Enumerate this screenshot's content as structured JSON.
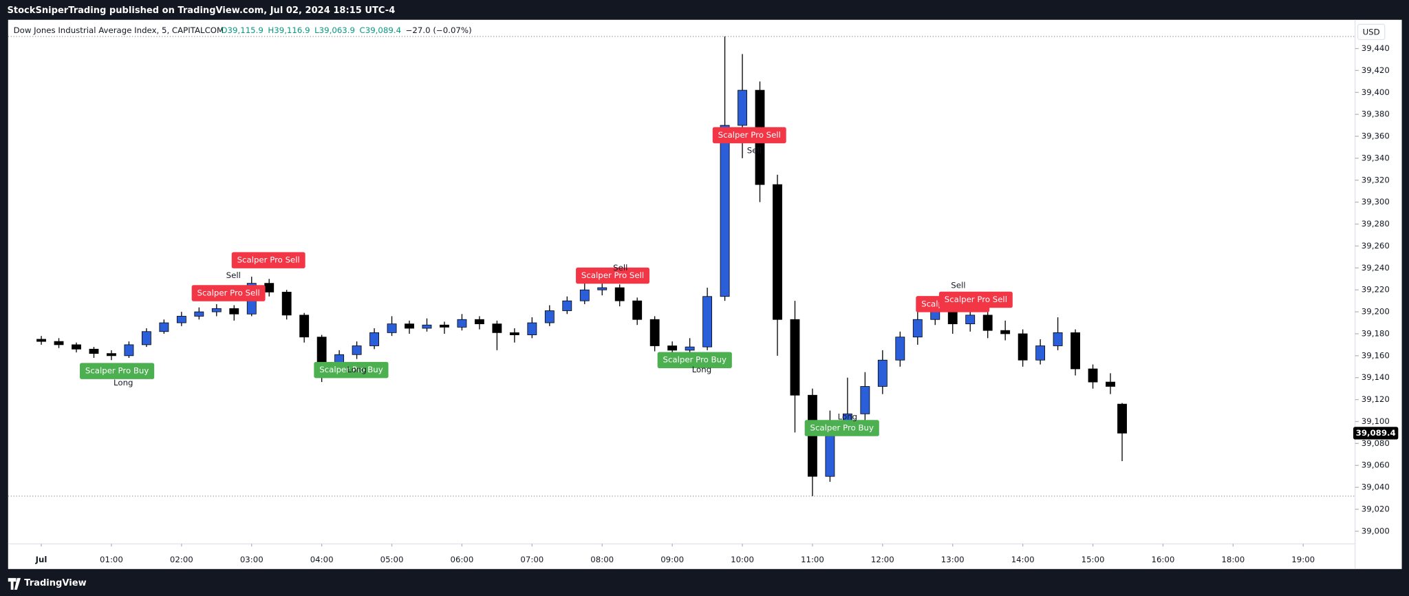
{
  "chart_data": {
    "type": "candlestick",
    "publisher": "StockSniperTrading published on TradingView.com, Jul 02, 2024 18:15 UTC-4",
    "title": "Dow Jones Industrial Average Index, 5, CAPITALCOM",
    "header_ohlc": [
      {
        "value": 39115.9,
        "label": "O39,115.9"
      },
      {
        "value": 39116.9,
        "label": "H39,116.9"
      },
      {
        "value": 39063.9,
        "label": "L39,063.9"
      },
      {
        "value": 39089.4,
        "label": "C39,089.4"
      }
    ],
    "change": "−27.0 (−0.07%)",
    "currency": "USD",
    "last_price": {
      "value": 39089.4,
      "label": "39,089.4"
    },
    "brand": "TradingView",
    "up_color": "#2b5fd9",
    "down_color": "#000000",
    "x": [
      0,
      0.25,
      0.5,
      0.75,
      1,
      1.25,
      1.5,
      1.75,
      2,
      2.25,
      2.5,
      2.75,
      3,
      3.25,
      3.5,
      3.75,
      4,
      4.25,
      4.5,
      4.75,
      5,
      5.25,
      5.5,
      5.75,
      6,
      6.25,
      6.5,
      6.75,
      7,
      7.25,
      7.5,
      7.75,
      8,
      8.25,
      8.5,
      8.75,
      9,
      9.25,
      9.5,
      9.75,
      10,
      10.25,
      10.5,
      10.75,
      11,
      11.25,
      11.5,
      11.75,
      12,
      12.25,
      12.5,
      12.75,
      13,
      13.25,
      13.5,
      13.75,
      14,
      14.25,
      14.5,
      14.75,
      15,
      15.25,
      15.417
    ],
    "open": [
      39175,
      39173,
      39170,
      39166,
      39162,
      39160,
      39170,
      39182,
      39190,
      39196,
      39200,
      39203,
      39198,
      39226,
      39218,
      39197,
      39177,
      39152,
      39161,
      39169,
      39181,
      39189,
      39185,
      39188,
      39186,
      39193,
      39189,
      39181,
      39179,
      39190,
      39201,
      39210,
      39220,
      39222,
      39210,
      39193,
      39169,
      39165,
      39168,
      39214,
      39370,
      39402,
      39316,
      39193,
      39124,
      39050,
      39099,
      39107,
      39132,
      39156,
      39177,
      39193,
      39201,
      39189,
      39197,
      39183,
      39180,
      39156,
      39169,
      39181,
      39148,
      39136,
      39115.9
    ],
    "high": [
      39178,
      39176,
      39172,
      39168,
      39165,
      39173,
      39185,
      39193,
      39200,
      39204,
      39207,
      39206,
      39232,
      39230,
      39220,
      39199,
      39179,
      39165,
      39173,
      39185,
      39196,
      39192,
      39194,
      39191,
      39198,
      39196,
      39192,
      39185,
      39195,
      39206,
      39214,
      39226,
      39228,
      39225,
      39213,
      39196,
      39173,
      39176,
      39222,
      39451,
      39435,
      39410,
      39325,
      39210,
      39130,
      39110,
      39140,
      39145,
      39165,
      39182,
      39200,
      39210,
      39215,
      39205,
      39200,
      39192,
      39184,
      39175,
      39195,
      39184,
      39152,
      39144,
      39116.9
    ],
    "low": [
      39170,
      39167,
      39163,
      39158,
      39156,
      39158,
      39168,
      39180,
      39187,
      39193,
      39196,
      39192,
      39196,
      39214,
      39193,
      39172,
      39136,
      39148,
      39157,
      39166,
      39178,
      39180,
      39182,
      39180,
      39183,
      39184,
      39165,
      39172,
      39176,
      39187,
      39198,
      39207,
      39215,
      39205,
      39188,
      39164,
      39160,
      39160,
      39165,
      39210,
      39340,
      39300,
      39160,
      39090,
      39032,
      39045,
      39090,
      39100,
      39125,
      39150,
      39170,
      39188,
      39180,
      39182,
      39176,
      39174,
      39150,
      39152,
      39165,
      39142,
      39130,
      39125,
      39063.9
    ],
    "close": [
      39173,
      39170,
      39166,
      39162,
      39160,
      39170,
      39182,
      39190,
      39196,
      39200,
      39203,
      39198,
      39226,
      39218,
      39197,
      39177,
      39152,
      39161,
      39169,
      39181,
      39189,
      39185,
      39188,
      39186,
      39193,
      39189,
      39181,
      39179,
      39190,
      39201,
      39210,
      39220,
      39222,
      39210,
      39193,
      39169,
      39165,
      39168,
      39214,
      39370,
      39402,
      39316,
      39193,
      39124,
      39050,
      39099,
      39107,
      39132,
      39156,
      39177,
      39193,
      39201,
      39189,
      39197,
      39183,
      39180,
      39156,
      39169,
      39181,
      39148,
      39136,
      39132,
      39089.4
    ],
    "xlim": [
      -0.474,
      18.74
    ],
    "xticks": [
      {
        "value": 0,
        "label": "Jul"
      },
      {
        "value": 1,
        "label": "01:00"
      },
      {
        "value": 2,
        "label": "02:00"
      },
      {
        "value": 3,
        "label": "03:00"
      },
      {
        "value": 4,
        "label": "04:00"
      },
      {
        "value": 5,
        "label": "05:00"
      },
      {
        "value": 6,
        "label": "06:00"
      },
      {
        "value": 7,
        "label": "07:00"
      },
      {
        "value": 8,
        "label": "08:00"
      },
      {
        "value": 9,
        "label": "09:00"
      },
      {
        "value": 10,
        "label": "10:00"
      },
      {
        "value": 11,
        "label": "11:00"
      },
      {
        "value": 12,
        "label": "12:00"
      },
      {
        "value": 13,
        "label": "13:00"
      },
      {
        "value": 14,
        "label": "14:00"
      },
      {
        "value": 15,
        "label": "15:00"
      },
      {
        "value": 16,
        "label": "16:00"
      },
      {
        "value": 17,
        "label": "18:00"
      },
      {
        "value": 18,
        "label": "19:00"
      }
    ],
    "ylim": [
      38988.5,
      39466.2
    ],
    "yticks": [
      {
        "value": 39000,
        "label": "39,000"
      },
      {
        "value": 39020,
        "label": "39,020"
      },
      {
        "value": 39040,
        "label": "39,040"
      },
      {
        "value": 39060,
        "label": "39,060"
      },
      {
        "value": 39080,
        "label": "39,080"
      },
      {
        "value": 39100,
        "label": "39,100"
      },
      {
        "value": 39120,
        "label": "39,120"
      },
      {
        "value": 39140,
        "label": "39,140"
      },
      {
        "value": 39160,
        "label": "39,160"
      },
      {
        "value": 39180,
        "label": "39,180"
      },
      {
        "value": 39200,
        "label": "39,200"
      },
      {
        "value": 39220,
        "label": "39,220"
      },
      {
        "value": 39240,
        "label": "39,240"
      },
      {
        "value": 39260,
        "label": "39,260"
      },
      {
        "value": 39280,
        "label": "39,280"
      },
      {
        "value": 39300,
        "label": "39,300"
      },
      {
        "value": 39320,
        "label": "39,320"
      },
      {
        "value": 39340,
        "label": "39,340"
      },
      {
        "value": 39360,
        "label": "39,360"
      },
      {
        "value": 39380,
        "label": "39,380"
      },
      {
        "value": 39400,
        "label": "39,400"
      },
      {
        "value": 39420,
        "label": "39,420"
      },
      {
        "value": 39440,
        "label": "39,440"
      }
    ],
    "grid": false,
    "sell_labels": [
      {
        "text": "Scalper Pro Sell",
        "x": 2.67,
        "y": 39217
      },
      {
        "text": "Scalper Pro Sell",
        "x": 3.24,
        "y": 39247
      },
      {
        "text": "Scalper Pro Sell",
        "x": 8.15,
        "y": 39233
      },
      {
        "text": "Scalper Pro Sell",
        "x": 10.1,
        "y": 39361
      },
      {
        "text": "Scalper Pro Sell",
        "x": 13.0,
        "y": 39207
      },
      {
        "text": "Scalper Pro Sell",
        "x": 13.33,
        "y": 39211
      }
    ],
    "buy_labels": [
      {
        "text": "Scalper Pro Buy",
        "x": 1.08,
        "y": 39146
      },
      {
        "text": "Scalper Pro Buy",
        "x": 4.42,
        "y": 39147
      },
      {
        "text": "Scalper Pro Buy",
        "x": 9.32,
        "y": 39156
      },
      {
        "text": "Scalper Pro Buy",
        "x": 11.42,
        "y": 39094
      }
    ],
    "signal_texts": [
      {
        "text": "Sell",
        "x": 2.74,
        "y": 39233
      },
      {
        "text": "Sell",
        "x": 8.26,
        "y": 39240
      },
      {
        "text": "Sell",
        "x": 10.17,
        "y": 39347
      },
      {
        "text": "Sell",
        "x": 13.08,
        "y": 39224
      },
      {
        "text": "Long",
        "x": 1.17,
        "y": 39135
      },
      {
        "text": "Long",
        "x": 4.5,
        "y": 39147
      },
      {
        "text": "Long",
        "x": 9.42,
        "y": 39147
      },
      {
        "text": "Long",
        "x": 11.5,
        "y": 39104
      }
    ]
  }
}
